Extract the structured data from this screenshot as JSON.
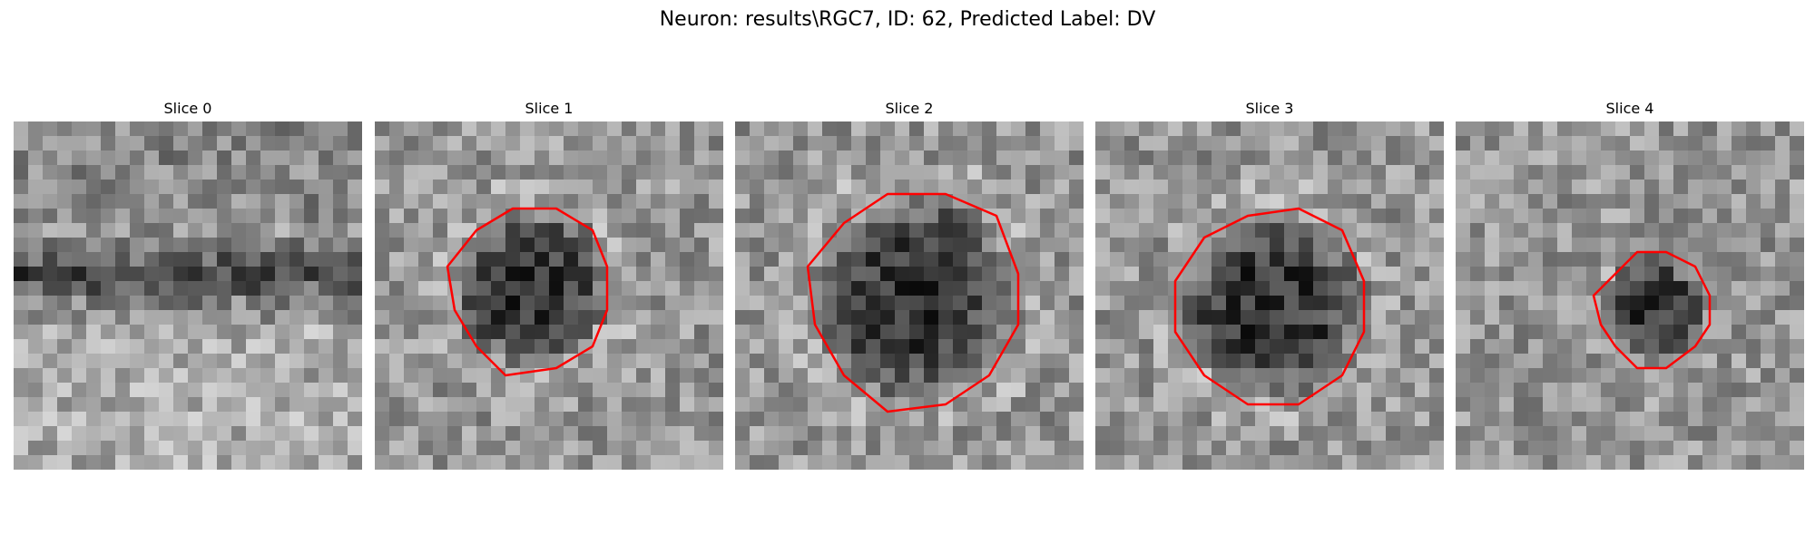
{
  "figure": {
    "title": "Neuron: results\\RGC7, ID: 62, Predicted Label: DV"
  },
  "panels": [
    {
      "title": "Slice 0",
      "has_contour": false,
      "dark_center": null,
      "dark_band": true,
      "contour_color": "#ff0000"
    },
    {
      "title": "Slice 1",
      "has_contour": true,
      "dark_center": [
        0.45,
        0.48
      ],
      "dark_radius": 0.23,
      "dark_band": false,
      "contour_color": "#ff0000"
    },
    {
      "title": "Slice 2",
      "has_contour": true,
      "dark_center": [
        0.52,
        0.51
      ],
      "dark_radius": 0.3,
      "dark_band": false,
      "contour_color": "#ff0000"
    },
    {
      "title": "Slice 3",
      "has_contour": true,
      "dark_center": [
        0.51,
        0.53
      ],
      "dark_radius": 0.27,
      "dark_band": false,
      "contour_color": "#ff0000"
    },
    {
      "title": "Slice 4",
      "has_contour": true,
      "dark_center": [
        0.57,
        0.54
      ],
      "dark_radius": 0.16,
      "dark_band": false,
      "contour_color": "#ff0000"
    }
  ]
}
